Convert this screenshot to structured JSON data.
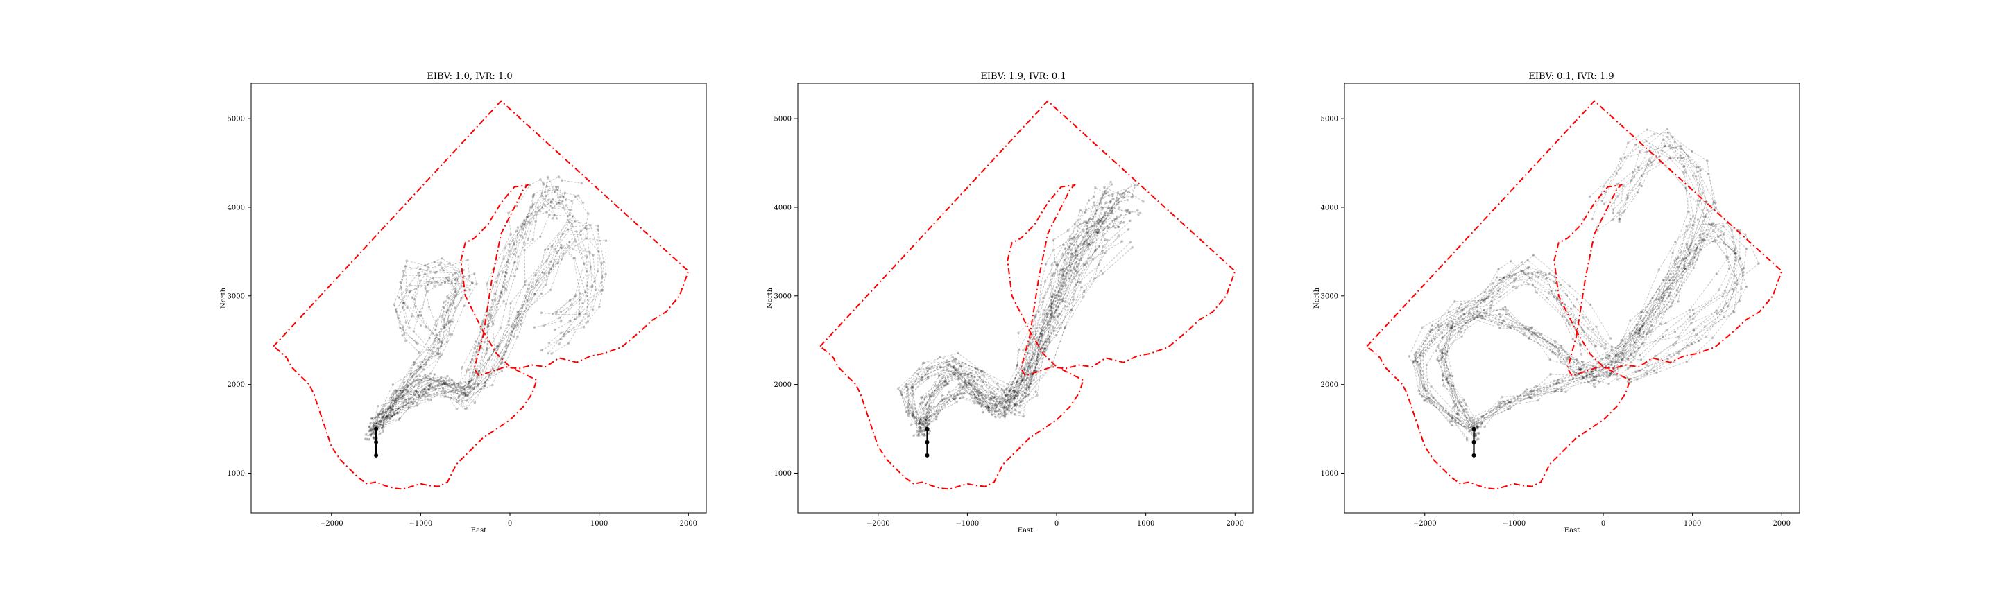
{
  "figure": {
    "panels": [
      {
        "title": "EIBV: 1.0, IVR: 1.0",
        "xlabel": "East",
        "ylabel": "North"
      },
      {
        "title": "EIBV: 1.9, IVR: 0.1",
        "xlabel": "East",
        "ylabel": "North"
      },
      {
        "title": "EIBV: 0.1, IVR: 1.9",
        "xlabel": "East",
        "ylabel": "North"
      }
    ]
  },
  "colors": {
    "boundary": "#ff0000",
    "trajectories": "#000000",
    "start_path": "#000000",
    "frame": "#000000",
    "background": "#ffffff"
  },
  "chart_data": [
    {
      "type": "line",
      "title": "EIBV: 1.0, IVR: 1.0",
      "xlabel": "East",
      "ylabel": "North",
      "xlim": [
        -2900,
        2200
      ],
      "ylim": [
        550,
        5400
      ],
      "xticks": [
        -2000,
        -1000,
        0,
        1000,
        2000
      ],
      "yticks": [
        1000,
        2000,
        3000,
        4000,
        5000
      ],
      "xtick_labels": [
        "−2000",
        "−1000",
        "0",
        "1000",
        "2000"
      ],
      "ytick_labels": [
        "1000",
        "2000",
        "3000",
        "4000",
        "5000"
      ],
      "grid": false,
      "series": [
        {
          "style": "boundary-dash-dot",
          "x": [
            -2650,
            -100,
            2000,
            1900,
            1750,
            1600,
            1450,
            1250,
            1050,
            900,
            750,
            550,
            400,
            250,
            100,
            -50,
            -200,
            -350,
            -400,
            -300,
            -200,
            -100,
            0,
            100,
            150,
            200,
            50,
            -100,
            -250,
            -400,
            -500,
            -550,
            -500,
            -300,
            -150,
            0,
            100,
            200,
            300,
            250,
            150,
            0,
            -150,
            -300,
            -450,
            -600,
            -700,
            -800,
            -900,
            -1000,
            -1100,
            -1200,
            -1300,
            -1400,
            -1500,
            -1600,
            -1700,
            -1800,
            -1900,
            -2000,
            -2050,
            -2100,
            -2150,
            -2200,
            -2250,
            -2300,
            -2350,
            -2400,
            -2450,
            -2500,
            -2550,
            -2650
          ],
          "y": [
            2430,
            5200,
            3280,
            3000,
            2820,
            2730,
            2590,
            2420,
            2350,
            2320,
            2250,
            2300,
            2200,
            2220,
            2180,
            2200,
            2150,
            2100,
            2180,
            2550,
            3200,
            3700,
            3900,
            4100,
            4200,
            4250,
            4230,
            4050,
            3800,
            3650,
            3600,
            3400,
            3000,
            2600,
            2350,
            2200,
            2150,
            2100,
            2050,
            1900,
            1750,
            1600,
            1500,
            1400,
            1250,
            1100,
            900,
            850,
            860,
            880,
            850,
            820,
            830,
            860,
            900,
            880,
            950,
            1050,
            1150,
            1300,
            1450,
            1600,
            1750,
            1900,
            2000,
            2050,
            2100,
            2150,
            2200,
            2300,
            2350,
            2430
          ]
        },
        {
          "style": "trajectory-center",
          "x": [
            -1500,
            -1400,
            -1250,
            -1100,
            -950,
            -800,
            -650,
            -500,
            -400,
            -300,
            -200,
            -100,
            0,
            100,
            200,
            300,
            400,
            500,
            600,
            700
          ],
          "y": [
            1550,
            1700,
            1850,
            1950,
            2050,
            2050,
            2000,
            1950,
            2100,
            2400,
            2700,
            3000,
            3300,
            3600,
            3800,
            4000,
            4100,
            4200,
            4100,
            4000
          ]
        },
        {
          "style": "trajectory-spread",
          "x": [
            -1500,
            -1300,
            -1100,
            -900,
            -700,
            -500,
            -300,
            -100,
            100,
            300,
            500,
            700,
            900,
            1000,
            900,
            700,
            500
          ],
          "y": [
            1500,
            1650,
            1800,
            1900,
            1950,
            1850,
            2000,
            2300,
            2700,
            3100,
            3400,
            3700,
            3600,
            3200,
            2900,
            2700,
            2600
          ]
        },
        {
          "style": "trajectory-west-excursion",
          "x": [
            -1550,
            -1400,
            -1200,
            -1000,
            -800,
            -700,
            -600,
            -500,
            -600,
            -800,
            -1000,
            -1100,
            -1050,
            -900
          ],
          "y": [
            1450,
            1700,
            1950,
            2200,
            2450,
            2700,
            2950,
            3200,
            3300,
            3300,
            3250,
            3000,
            2800,
            2600
          ]
        },
        {
          "style": "start-path",
          "x": [
            -1500,
            -1500,
            -1500
          ],
          "y": [
            1200,
            1350,
            1500
          ]
        }
      ]
    },
    {
      "type": "line",
      "title": "EIBV: 1.9, IVR: 0.1",
      "xlabel": "East",
      "ylabel": "North",
      "xlim": [
        -2900,
        2200
      ],
      "ylim": [
        550,
        5400
      ],
      "xticks": [
        -2000,
        -1000,
        0,
        1000,
        2000
      ],
      "yticks": [
        1000,
        2000,
        3000,
        4000,
        5000
      ],
      "xtick_labels": [
        "−2000",
        "−1000",
        "0",
        "1000",
        "2000"
      ],
      "ytick_labels": [
        "1000",
        "2000",
        "3000",
        "4000",
        "5000"
      ],
      "grid": false,
      "series": [
        {
          "style": "boundary-dash-dot",
          "x": [
            -2650,
            -100,
            2000,
            1900,
            1750,
            1600,
            1450,
            1250,
            1050,
            900,
            750,
            550,
            400,
            250,
            100,
            -50,
            -200,
            -350,
            -400,
            -300,
            -200,
            -100,
            0,
            100,
            150,
            200,
            50,
            -100,
            -250,
            -400,
            -500,
            -550,
            -500,
            -300,
            -150,
            0,
            100,
            200,
            300,
            250,
            150,
            0,
            -150,
            -300,
            -450,
            -600,
            -700,
            -800,
            -900,
            -1000,
            -1100,
            -1200,
            -1300,
            -1400,
            -1500,
            -1600,
            -1700,
            -1800,
            -1900,
            -2000,
            -2050,
            -2100,
            -2150,
            -2200,
            -2250,
            -2300,
            -2350,
            -2400,
            -2450,
            -2500,
            -2550,
            -2650
          ],
          "y": [
            2430,
            5200,
            3280,
            3000,
            2820,
            2730,
            2590,
            2420,
            2350,
            2320,
            2250,
            2300,
            2200,
            2220,
            2180,
            2200,
            2150,
            2100,
            2180,
            2550,
            3200,
            3700,
            3900,
            4100,
            4200,
            4250,
            4230,
            4050,
            3800,
            3650,
            3600,
            3400,
            3000,
            2600,
            2350,
            2200,
            2150,
            2100,
            2050,
            1900,
            1750,
            1600,
            1500,
            1400,
            1250,
            1100,
            900,
            850,
            860,
            880,
            850,
            820,
            830,
            860,
            900,
            880,
            950,
            1050,
            1150,
            1300,
            1450,
            1600,
            1750,
            1900,
            2000,
            2050,
            2100,
            2150,
            2200,
            2300,
            2350,
            2430
          ]
        },
        {
          "style": "trajectory-center",
          "x": [
            -1500,
            -1450,
            -1300,
            -1150,
            -1000,
            -850,
            -700,
            -550,
            -450,
            -350,
            -250,
            -150,
            -50,
            50,
            150,
            250,
            350,
            450,
            550,
            650,
            750
          ],
          "y": [
            1550,
            1800,
            2050,
            2150,
            2050,
            1850,
            1750,
            1800,
            1950,
            2150,
            2450,
            2750,
            3050,
            3300,
            3500,
            3650,
            3800,
            3900,
            4000,
            4050,
            4000
          ]
        },
        {
          "style": "trajectory-spread",
          "x": [
            -1550,
            -1400,
            -1200,
            -1000,
            -800,
            -600,
            -450,
            -300,
            -150,
            0,
            150,
            300,
            450,
            600,
            700
          ],
          "y": [
            1500,
            1650,
            1850,
            1950,
            1800,
            1700,
            1800,
            2100,
            2500,
            2900,
            3300,
            3550,
            3750,
            3950,
            4100
          ]
        },
        {
          "style": "trajectory-loop",
          "x": [
            -1500,
            -1650,
            -1700,
            -1500,
            -1200,
            -900,
            -700,
            -500,
            -350,
            -200,
            0,
            200,
            400,
            600
          ],
          "y": [
            1500,
            1700,
            1950,
            2150,
            2250,
            2100,
            1900,
            1800,
            2000,
            2400,
            2800,
            3200,
            3500,
            3800
          ]
        },
        {
          "style": "start-path",
          "x": [
            -1450,
            -1450,
            -1450
          ],
          "y": [
            1200,
            1350,
            1500
          ]
        }
      ]
    },
    {
      "type": "line",
      "title": "EIBV: 0.1, IVR: 1.9",
      "xlabel": "East",
      "ylabel": "North",
      "xlim": [
        -2900,
        2200
      ],
      "ylim": [
        550,
        5400
      ],
      "xticks": [
        -2000,
        -1000,
        0,
        1000,
        2000
      ],
      "yticks": [
        1000,
        2000,
        3000,
        4000,
        5000
      ],
      "xtick_labels": [
        "−2000",
        "−1000",
        "0",
        "1000",
        "2000"
      ],
      "ytick_labels": [
        "1000",
        "2000",
        "3000",
        "4000",
        "5000"
      ],
      "grid": false,
      "series": [
        {
          "style": "boundary-dash-dot",
          "x": [
            -2650,
            -100,
            2000,
            1900,
            1750,
            1600,
            1450,
            1250,
            1050,
            900,
            750,
            550,
            400,
            250,
            100,
            -50,
            -200,
            -350,
            -400,
            -300,
            -200,
            -100,
            0,
            100,
            150,
            200,
            50,
            -100,
            -250,
            -400,
            -500,
            -550,
            -500,
            -300,
            -150,
            0,
            100,
            200,
            300,
            250,
            150,
            0,
            -150,
            -300,
            -450,
            -600,
            -700,
            -800,
            -900,
            -1000,
            -1100,
            -1200,
            -1300,
            -1400,
            -1500,
            -1600,
            -1700,
            -1800,
            -1900,
            -2000,
            -2050,
            -2100,
            -2150,
            -2200,
            -2250,
            -2300,
            -2350,
            -2400,
            -2450,
            -2500,
            -2550,
            -2650
          ],
          "y": [
            2430,
            5200,
            3280,
            3000,
            2820,
            2730,
            2590,
            2420,
            2350,
            2320,
            2250,
            2300,
            2200,
            2220,
            2180,
            2200,
            2150,
            2100,
            2180,
            2550,
            3200,
            3700,
            3900,
            4100,
            4200,
            4250,
            4230,
            4050,
            3800,
            3650,
            3600,
            3400,
            3000,
            2600,
            2350,
            2200,
            2150,
            2100,
            2050,
            1900,
            1750,
            1600,
            1500,
            1400,
            1250,
            1100,
            900,
            850,
            860,
            880,
            850,
            820,
            830,
            860,
            900,
            880,
            950,
            1050,
            1150,
            1300,
            1450,
            1600,
            1750,
            1900,
            2000,
            2050,
            2100,
            2150,
            2200,
            2300,
            2350,
            2430
          ]
        },
        {
          "style": "trajectory-north-loop",
          "x": [
            -1450,
            -1600,
            -1750,
            -1800,
            -1650,
            -1400,
            -1100,
            -800,
            -500,
            -300,
            -100,
            100,
            300,
            500,
            700,
            900,
            1100,
            1300,
            1500,
            1550,
            1400,
            1100,
            800,
            500,
            300
          ],
          "y": [
            1500,
            1750,
            2050,
            2350,
            2650,
            2800,
            2750,
            2600,
            2400,
            2200,
            2100,
            2150,
            2350,
            2700,
            3100,
            3400,
            3700,
            3800,
            3600,
            3300,
            3000,
            2700,
            2500,
            2300,
            2200
          ]
        },
        {
          "style": "trajectory-west-loop",
          "x": [
            -1450,
            -1700,
            -2000,
            -2100,
            -1900,
            -1600,
            -1300,
            -1100,
            -900,
            -700,
            -500,
            -300,
            -100
          ],
          "y": [
            1450,
            1600,
            1900,
            2300,
            2600,
            2850,
            3000,
            3200,
            3300,
            3200,
            3000,
            2700,
            2400
          ]
        },
        {
          "style": "trajectory-east-loop",
          "x": [
            -1400,
            -1100,
            -800,
            -500,
            -200,
            100,
            400,
            700,
            900,
            1100,
            1000,
            800,
            600,
            400,
            200,
            0
          ],
          "y": [
            1600,
            1800,
            1900,
            2000,
            2100,
            2300,
            2600,
            3000,
            3500,
            4000,
            4400,
            4650,
            4700,
            4500,
            4200,
            3900
          ]
        },
        {
          "style": "start-path",
          "x": [
            -1450,
            -1450,
            -1450
          ],
          "y": [
            1200,
            1350,
            1500
          ]
        }
      ]
    }
  ]
}
